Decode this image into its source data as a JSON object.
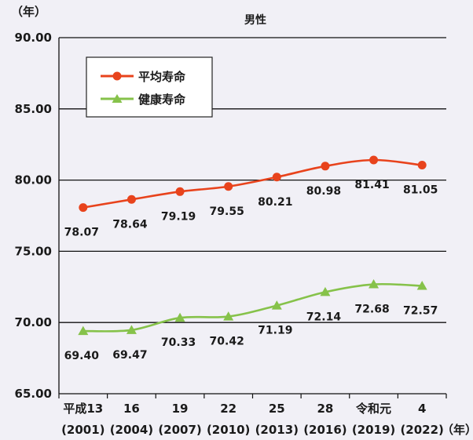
{
  "chart_data": {
    "type": "line",
    "title": "男性",
    "ylabel": "（年）",
    "xlabel": "（年）",
    "ylim": [
      65,
      90
    ],
    "yticks": [
      "90.00",
      "85.00",
      "80.00",
      "75.00",
      "70.00",
      "65.00"
    ],
    "ytick_values": [
      90,
      85,
      80,
      75,
      70,
      65
    ],
    "categories": [
      "平成13",
      "16",
      "19",
      "22",
      "25",
      "28",
      "令和元",
      "4"
    ],
    "categories_sub": [
      "(2001)",
      "(2004)",
      "(2007)",
      "(2010)",
      "(2013)",
      "(2016)",
      "(2019)",
      "(2022)"
    ],
    "grid": "horizontal",
    "legend": "top-left",
    "series": [
      {
        "name": "平均寿命",
        "color": "#e8431c",
        "marker": "circle",
        "values": [
          78.07,
          78.64,
          79.19,
          79.55,
          80.21,
          80.98,
          81.41,
          81.05
        ],
        "labels": [
          "78.07",
          "78.64",
          "79.19",
          "79.55",
          "80.21",
          "80.98",
          "81.41",
          "81.05"
        ]
      },
      {
        "name": "健康寿命",
        "color": "#86c24a",
        "marker": "triangle",
        "values": [
          69.4,
          69.47,
          70.33,
          70.42,
          71.19,
          72.14,
          72.68,
          72.57
        ],
        "labels": [
          "69.40",
          "69.47",
          "70.33",
          "70.42",
          "71.19",
          "72.14",
          "72.68",
          "72.57"
        ]
      }
    ]
  }
}
